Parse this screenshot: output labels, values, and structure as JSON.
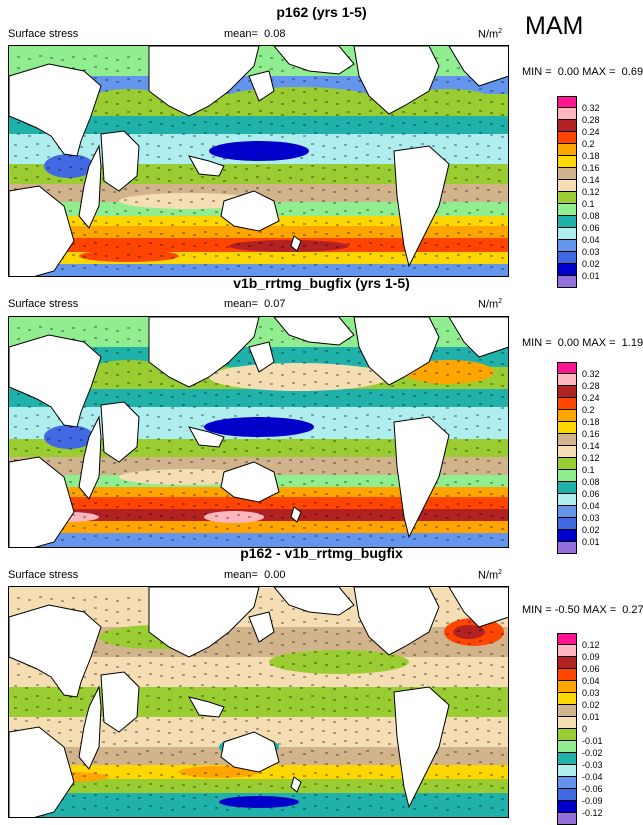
{
  "season": "MAM",
  "panels": [
    {
      "title": "p162 (yrs 1-5)",
      "left_label": "Surface stress",
      "mean_label": "mean=",
      "mean_value": "0.08",
      "unit_base": "N/m",
      "unit_sup": "2",
      "minmax": "MIN =  0.00 MAX =  0.69",
      "levels": [
        "0.32",
        "0.28",
        "0.24",
        "0.2",
        "0.18",
        "0.16",
        "0.14",
        "0.12",
        "0.1",
        "0.08",
        "0.06",
        "0.04",
        "0.03",
        "0.02",
        "0.01"
      ],
      "colors": [
        "#ff1493",
        "#ffb6c1",
        "#b22222",
        "#ff4500",
        "#ffa500",
        "#ffd700",
        "#d2b48c",
        "#f5deb3",
        "#9acd32",
        "#90ee90",
        "#20b2aa",
        "#afeeee",
        "#6495ed",
        "#4169e1",
        "#0000cd",
        "#9370db"
      ]
    },
    {
      "title": "v1b_rrtmg_bugfix (yrs 1-5)",
      "left_label": "Surface stress",
      "mean_label": "mean=",
      "mean_value": "0.07",
      "unit_base": "N/m",
      "unit_sup": "2",
      "minmax": "MIN =  0.00 MAX =  1.19",
      "levels": [
        "0.32",
        "0.28",
        "0.24",
        "0.2",
        "0.18",
        "0.16",
        "0.14",
        "0.12",
        "0.1",
        "0.08",
        "0.06",
        "0.04",
        "0.03",
        "0.02",
        "0.01"
      ],
      "colors": [
        "#ff1493",
        "#ffb6c1",
        "#b22222",
        "#ff4500",
        "#ffa500",
        "#ffd700",
        "#d2b48c",
        "#f5deb3",
        "#9acd32",
        "#90ee90",
        "#20b2aa",
        "#afeeee",
        "#6495ed",
        "#4169e1",
        "#0000cd",
        "#9370db"
      ]
    },
    {
      "title": "p162 - v1b_rrtmg_bugfix",
      "left_label": "Surface stress",
      "mean_label": "mean=",
      "mean_value": "0.00",
      "unit_base": "N/m",
      "unit_sup": "2",
      "minmax": "MIN = -0.50 MAX =  0.27",
      "levels": [
        "0.12",
        "0.09",
        "0.06",
        "0.04",
        "0.03",
        "0.02",
        "0.01",
        "0",
        "-0.01",
        "-0.02",
        "-0.03",
        "-0.04",
        "-0.06",
        "-0.09",
        "-0.12"
      ],
      "colors": [
        "#ff1493",
        "#ffb6c1",
        "#b22222",
        "#ff4500",
        "#ffa500",
        "#ffd700",
        "#d2b48c",
        "#f5deb3",
        "#9acd32",
        "#90ee90",
        "#20b2aa",
        "#afeeee",
        "#6495ed",
        "#4169e1",
        "#0000cd",
        "#9370db"
      ]
    }
  ]
}
